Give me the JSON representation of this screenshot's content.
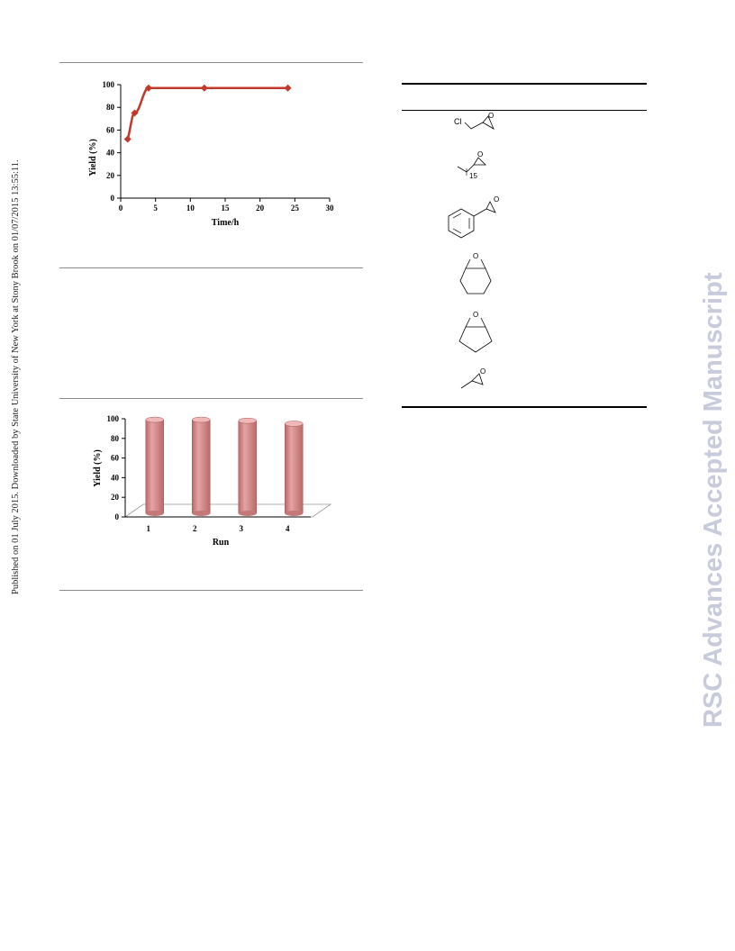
{
  "side_note": "Published on 01 July 2015. Downloaded by State University of New York at Stony Brook on 01/07/2015 13:55:11.",
  "watermark": "RSC Advances Accepted Manuscript",
  "chart_data": [
    {
      "type": "line",
      "xlabel": "Time/h",
      "ylabel": "Yield (%)",
      "xlim": [
        0,
        30
      ],
      "ylim": [
        0,
        100
      ],
      "x_ticks": [
        "0",
        "5",
        "10",
        "15",
        "20",
        "25",
        "30"
      ],
      "y_ticks": [
        "0",
        "20",
        "40",
        "60",
        "80",
        "100"
      ],
      "x": [
        1,
        2,
        4,
        12,
        24
      ],
      "values": [
        52,
        75,
        97,
        97,
        97
      ],
      "color": "#c0392b"
    },
    {
      "type": "bar",
      "xlabel": "Run",
      "ylabel": "Yield (%)",
      "ylim": [
        0,
        100
      ],
      "categories": [
        "1",
        "2",
        "3",
        "4"
      ],
      "y_ticks": [
        "0",
        "20",
        "40",
        "60",
        "80",
        "100"
      ],
      "values": [
        99,
        99,
        98,
        95
      ],
      "color": "#d88a8a"
    }
  ],
  "molecules": [
    {
      "name": "epichlorohydrin",
      "labels": [
        "Cl",
        "O"
      ]
    },
    {
      "name": "long-chain epoxide",
      "labels": [
        "O",
        "15"
      ]
    },
    {
      "name": "styrene oxide",
      "labels": [
        "O"
      ]
    },
    {
      "name": "cyclohexene oxide",
      "labels": [
        "O"
      ]
    },
    {
      "name": "cyclopentene oxide",
      "labels": [
        "O"
      ]
    },
    {
      "name": "propylene oxide",
      "labels": [
        "O"
      ]
    }
  ]
}
